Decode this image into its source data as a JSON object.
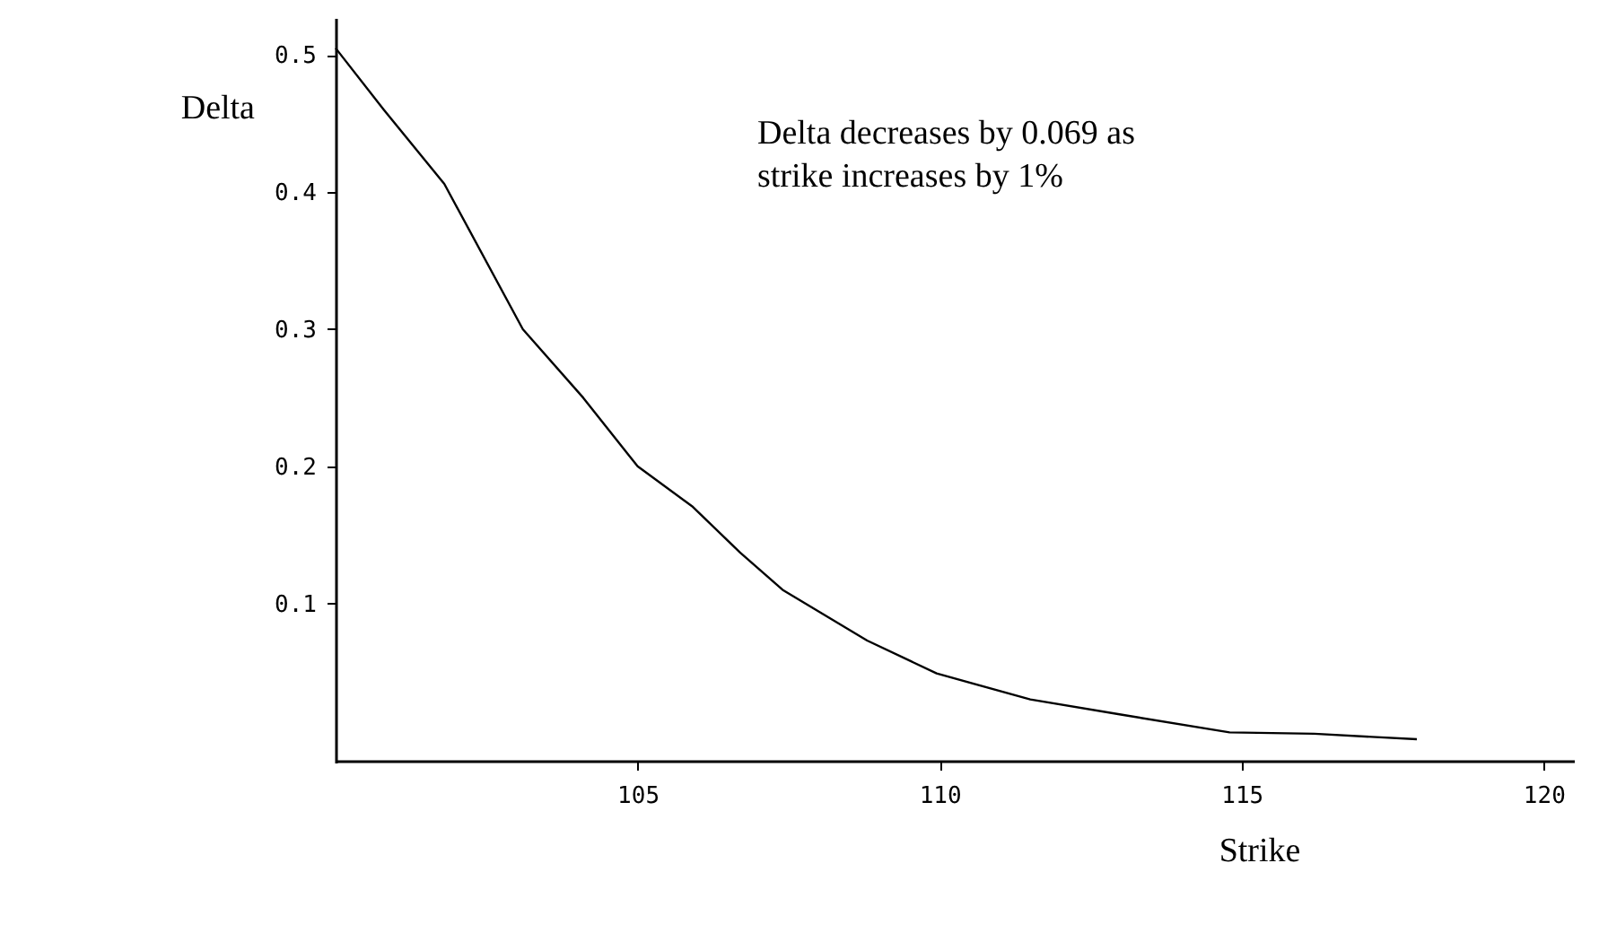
{
  "chart_data": {
    "type": "line",
    "xlabel": "Strike",
    "ylabel": "Delta",
    "x": [
      100,
      100.8,
      101.8,
      103.1,
      104.1,
      105.0,
      105.9,
      106.7,
      107.4,
      108.8,
      109.95,
      111.5,
      113.0,
      114.8,
      116.2,
      117.9
    ],
    "series": [
      {
        "color": "#000000",
        "values": [
          0.505,
          0.46,
          0.406,
          0.3,
          0.25,
          0.2,
          0.171,
          0.137,
          0.11,
          0.073,
          0.049,
          0.03,
          0.019,
          0.006,
          0.005,
          0.001
        ]
      }
    ],
    "xlim": [
      100,
      120.5
    ],
    "ylim": [
      -0.016,
      0.527
    ],
    "xticks": [
      105,
      110,
      115,
      120
    ],
    "yticks": [
      0.1,
      0.2,
      0.3,
      0.4,
      0.5
    ],
    "annotations": [
      "Delta decreases by 0.069 as strike increases by 1%"
    ],
    "grid": false,
    "marker": "none",
    "line_style": "solid"
  }
}
